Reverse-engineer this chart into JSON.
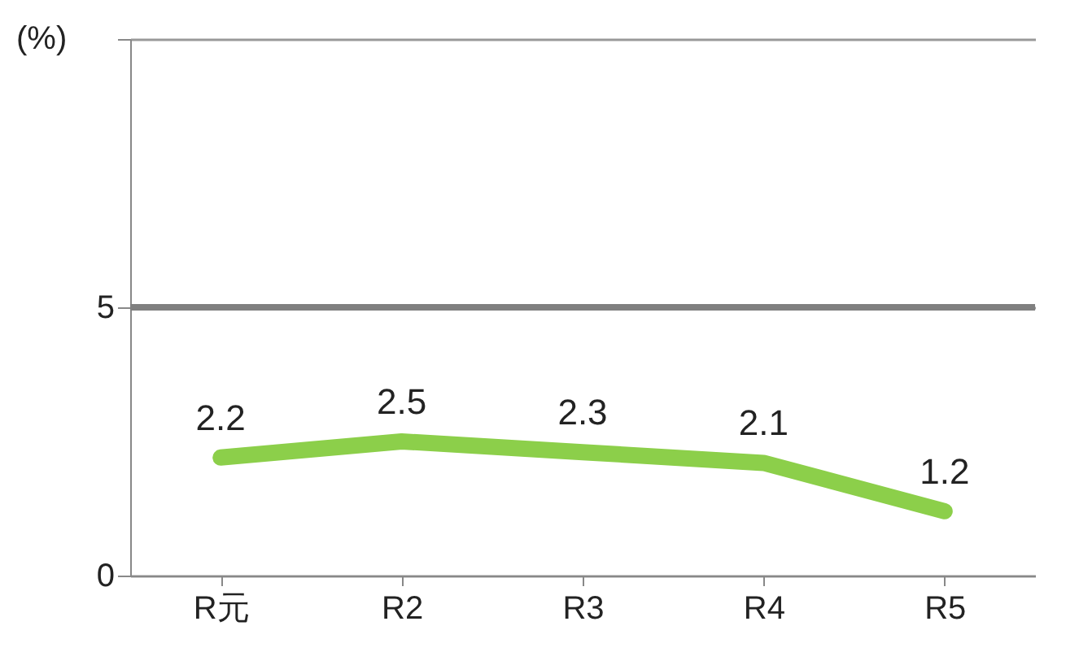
{
  "chart_data": {
    "type": "line",
    "ylabel": "(%)",
    "categories": [
      "R元",
      "R2",
      "R3",
      "R4",
      "R5"
    ],
    "series": [
      {
        "color": "#8ccf4a",
        "values": [
          2.2,
          2.5,
          2.3,
          2.1,
          1.2
        ]
      }
    ],
    "ylim": [
      0,
      10
    ],
    "yticks": [
      0,
      5,
      {
        "value": 10,
        "label": null
      }
    ],
    "grid": "y",
    "data_labels": true,
    "marker": "none",
    "line_style": "solid",
    "ref_lines": [
      {
        "axis": "y",
        "value": 5,
        "color": "#808080"
      }
    ]
  }
}
